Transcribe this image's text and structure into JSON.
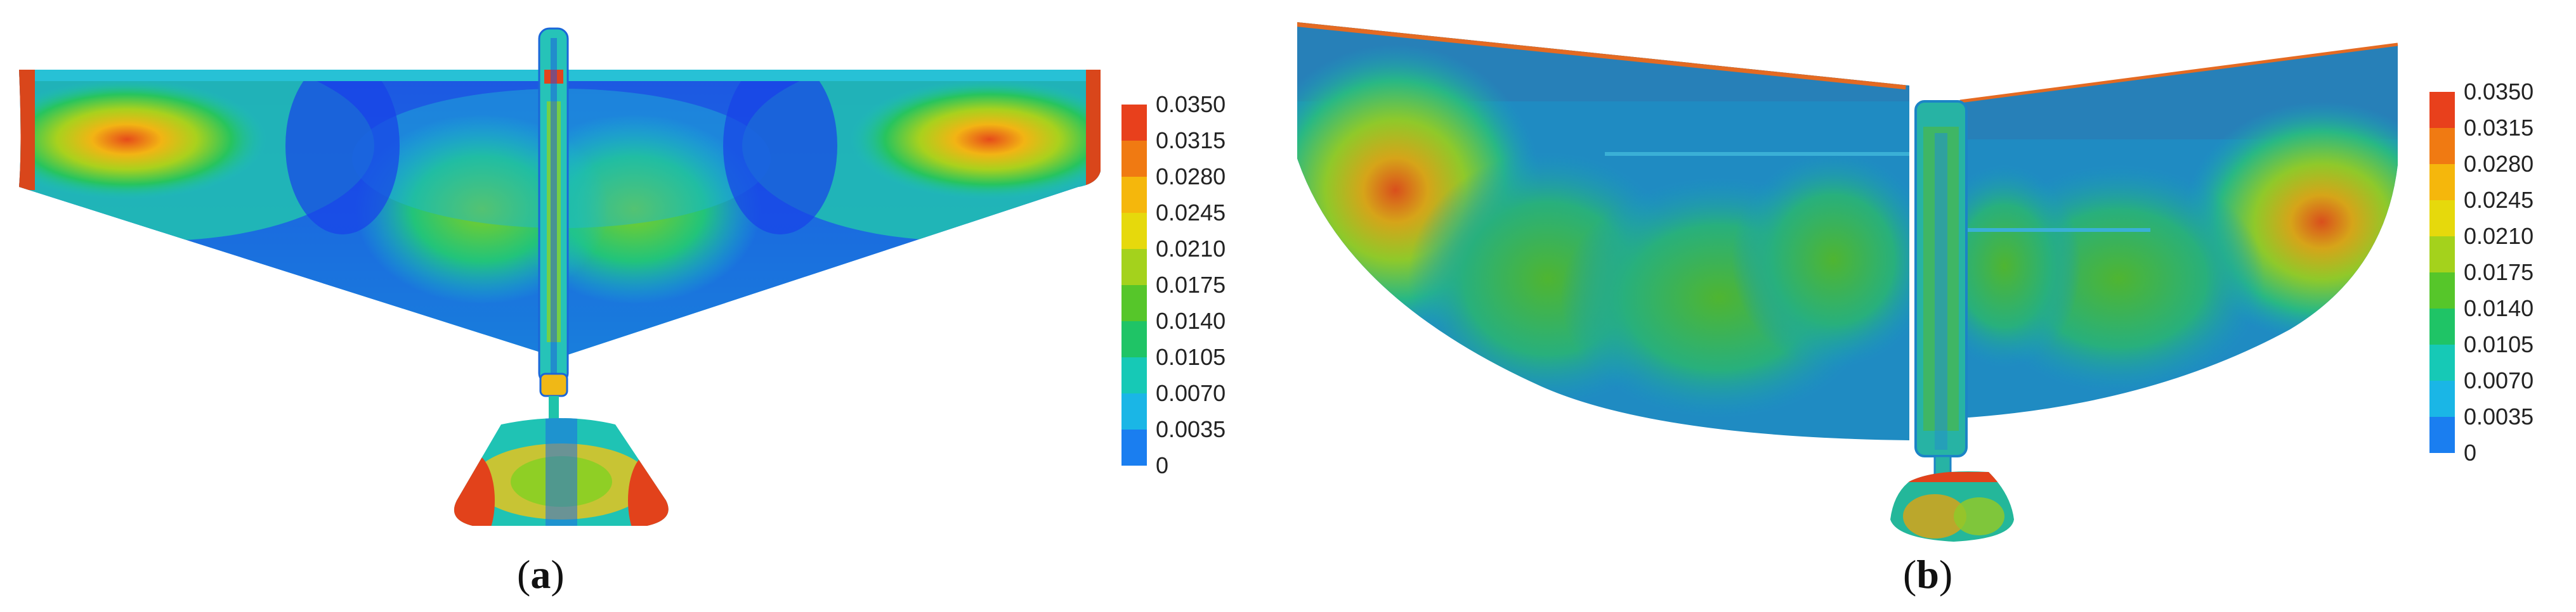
{
  "colorbar": {
    "ticks": [
      "0.0350",
      "0.0315",
      "0.0280",
      "0.0245",
      "0.0210",
      "0.0175",
      "0.0140",
      "0.0105",
      "0.0070",
      "0.0035",
      "0"
    ],
    "colors": [
      "#e8401c",
      "#f07a12",
      "#f5b70c",
      "#e6d90c",
      "#a4d21c",
      "#56c62a",
      "#1fc466",
      "#16c9b6",
      "#1ab6e6",
      "#1a7ef0",
      "#1b3ff2"
    ]
  },
  "panels": [
    {
      "id": "a",
      "caption_open": "(",
      "caption_letter": "a",
      "caption_close": ")"
    },
    {
      "id": "b",
      "caption_open": "(",
      "caption_letter": "b",
      "caption_close": ")"
    }
  ]
}
